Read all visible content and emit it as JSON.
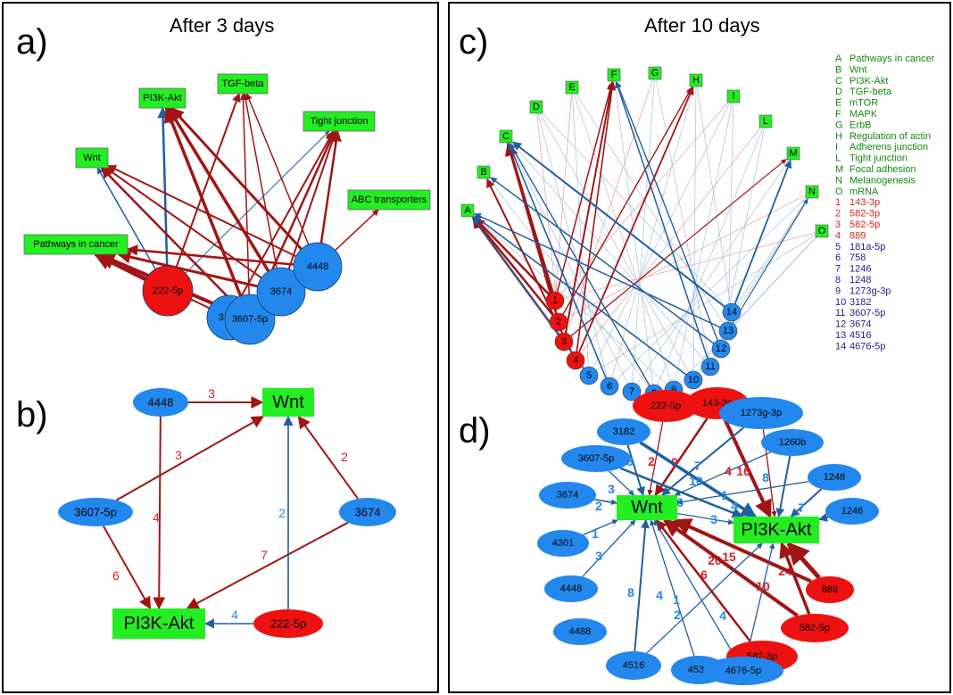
{
  "panel_a": {
    "letter": "a)",
    "title": "After 3 days",
    "pathways": [
      {
        "id": "cancer",
        "label": "Pathways in cancer"
      },
      {
        "id": "wnt",
        "label": "Wnt"
      },
      {
        "id": "pi3k",
        "label": "PI3K-Akt"
      },
      {
        "id": "tgf",
        "label": "TGF-beta"
      },
      {
        "id": "tight",
        "label": "Tight junction"
      },
      {
        "id": "abc",
        "label": "ABC transporters"
      }
    ],
    "mirnas": [
      {
        "id": "m222",
        "label": "222-5p",
        "type": "red"
      },
      {
        "id": "m3195",
        "label": "3195",
        "type": "blue"
      },
      {
        "id": "m3607",
        "label": "3607-5p",
        "type": "blue"
      },
      {
        "id": "m3674",
        "label": "3674",
        "type": "blue"
      },
      {
        "id": "m4448",
        "label": "4448",
        "type": "blue"
      }
    ]
  },
  "panel_b": {
    "letter": "b)",
    "nodes": [
      {
        "id": "wnt",
        "label": "Wnt",
        "kind": "pathway"
      },
      {
        "id": "pi3k",
        "label": "PI3K-Akt",
        "kind": "pathway"
      },
      {
        "id": "n4448",
        "label": "4448",
        "kind": "blue"
      },
      {
        "id": "n3607",
        "label": "3607-5p",
        "kind": "blue"
      },
      {
        "id": "n3674",
        "label": "3674",
        "kind": "blue"
      },
      {
        "id": "n222",
        "label": "222-5p",
        "kind": "red"
      }
    ],
    "edges": [
      {
        "from": "n4448",
        "to": "wnt",
        "weight": "3",
        "color": "red"
      },
      {
        "from": "n4448",
        "to": "pi3k",
        "weight": "4",
        "color": "red"
      },
      {
        "from": "n3607",
        "to": "wnt",
        "weight": "3",
        "color": "red"
      },
      {
        "from": "n3607",
        "to": "pi3k",
        "weight": "6",
        "color": "red"
      },
      {
        "from": "n3674",
        "to": "wnt",
        "weight": "2",
        "color": "red"
      },
      {
        "from": "n3674",
        "to": "pi3k",
        "weight": "7",
        "color": "red"
      },
      {
        "from": "n222",
        "to": "wnt",
        "weight": "2",
        "color": "blue"
      },
      {
        "from": "n222",
        "to": "pi3k",
        "weight": "4",
        "color": "blue"
      }
    ]
  },
  "panel_c": {
    "letter": "c)",
    "title": "After 10 days",
    "pathway_nodes": [
      "A",
      "B",
      "C",
      "D",
      "E",
      "F",
      "G",
      "H",
      "I",
      "L",
      "M",
      "N",
      "O"
    ],
    "mirna_nodes": [
      "1",
      "2",
      "3",
      "4",
      "5",
      "6",
      "7",
      "8",
      "9",
      "10",
      "11",
      "12",
      "13",
      "14"
    ],
    "legend_pathways": [
      {
        "key": "A",
        "name": "Pathways in cancer"
      },
      {
        "key": "B",
        "name": "Wnt"
      },
      {
        "key": "C",
        "name": "PI3K-Akt"
      },
      {
        "key": "D",
        "name": "TGF-beta"
      },
      {
        "key": "E",
        "name": "mTOR"
      },
      {
        "key": "F",
        "name": "MAPK"
      },
      {
        "key": "G",
        "name": "ErbB"
      },
      {
        "key": "H",
        "name": "Regulation of actin"
      },
      {
        "key": "I",
        "name": "Adherens junction"
      },
      {
        "key": "L",
        "name": "Tight junction"
      },
      {
        "key": "M",
        "name": "Focal adhesion"
      },
      {
        "key": "N",
        "name": "Melanogenesis"
      },
      {
        "key": "O",
        "name": "mRNA"
      }
    ],
    "legend_mirnas": [
      {
        "key": "1",
        "name": "143-3p",
        "type": "red"
      },
      {
        "key": "2",
        "name": "582-3p",
        "type": "red"
      },
      {
        "key": "3",
        "name": "582-5p",
        "type": "red"
      },
      {
        "key": "4",
        "name": "889",
        "type": "red"
      },
      {
        "key": "5",
        "name": "181a-5p",
        "type": "blue"
      },
      {
        "key": "6",
        "name": "758",
        "type": "blue"
      },
      {
        "key": "7",
        "name": "1246",
        "type": "blue"
      },
      {
        "key": "8",
        "name": "1248",
        "type": "blue"
      },
      {
        "key": "9",
        "name": "1273g-3p",
        "type": "blue"
      },
      {
        "key": "10",
        "name": "3182",
        "type": "blue"
      },
      {
        "key": "11",
        "name": "3607-5p",
        "type": "blue"
      },
      {
        "key": "12",
        "name": "3674",
        "type": "blue"
      },
      {
        "key": "13",
        "name": "4516",
        "type": "blue"
      },
      {
        "key": "14",
        "name": "4676-5p",
        "type": "blue"
      }
    ]
  },
  "panel_d": {
    "letter": "d)",
    "hubs": [
      {
        "id": "wnt",
        "label": "Wnt"
      },
      {
        "id": "pi3k",
        "label": "PI3K-Akt"
      }
    ],
    "mirnas": [
      {
        "id": "d222",
        "label": "222-5p",
        "type": "red"
      },
      {
        "id": "d143",
        "label": "143-3p",
        "type": "red"
      },
      {
        "id": "d1273",
        "label": "1273g-3p",
        "type": "blue"
      },
      {
        "id": "d3182",
        "label": "3182",
        "type": "blue"
      },
      {
        "id": "d1260",
        "label": "1260b",
        "type": "blue"
      },
      {
        "id": "d3607",
        "label": "3607-5p",
        "type": "blue"
      },
      {
        "id": "d1248",
        "label": "1248",
        "type": "blue"
      },
      {
        "id": "d3674",
        "label": "3674",
        "type": "blue"
      },
      {
        "id": "d1246",
        "label": "1246",
        "type": "blue"
      },
      {
        "id": "d4301",
        "label": "4301",
        "type": "blue"
      },
      {
        "id": "d4448",
        "label": "4448",
        "type": "blue"
      },
      {
        "id": "d889",
        "label": "889",
        "type": "red"
      },
      {
        "id": "d4488",
        "label": "4488",
        "type": "blue"
      },
      {
        "id": "d5825",
        "label": "582-5p",
        "type": "red"
      },
      {
        "id": "d4516",
        "label": "4516",
        "type": "blue"
      },
      {
        "id": "d5823",
        "label": "582-3p",
        "type": "red"
      },
      {
        "id": "d4532",
        "label": "4532",
        "type": "blue"
      },
      {
        "id": "d4676",
        "label": "4676-5p",
        "type": "blue"
      }
    ],
    "edges": [
      {
        "from": "d222",
        "to": "wnt",
        "weight": "2",
        "color": "red"
      },
      {
        "from": "d143",
        "to": "wnt",
        "weight": "9",
        "color": "red"
      },
      {
        "from": "d143",
        "to": "pi3k",
        "weight": "16",
        "color": "red"
      },
      {
        "from": "d1273",
        "to": "wnt",
        "weight": "7",
        "color": "blue"
      },
      {
        "from": "d1273",
        "to": "pi3k",
        "weight": "4",
        "color": "red"
      },
      {
        "from": "d3182",
        "to": "wnt",
        "weight": "8",
        "color": "blue"
      },
      {
        "from": "d3182",
        "to": "pi3k",
        "weight": "10",
        "color": "blue"
      },
      {
        "from": "d1260",
        "to": "wnt",
        "weight": "1",
        "color": "blue"
      },
      {
        "from": "d1260",
        "to": "pi3k",
        "weight": "8",
        "color": "blue"
      },
      {
        "from": "d3607",
        "to": "wnt",
        "weight": "3",
        "color": "blue"
      },
      {
        "from": "d3607",
        "to": "pi3k",
        "weight": "6",
        "color": "blue"
      },
      {
        "from": "d1248",
        "to": "wnt",
        "weight": "4",
        "color": "blue"
      },
      {
        "from": "d1248",
        "to": "pi3k",
        "weight": "7",
        "color": "blue"
      },
      {
        "from": "d3674",
        "to": "wnt",
        "weight": "2",
        "color": "blue"
      },
      {
        "from": "d3674",
        "to": "pi3k",
        "weight": "3",
        "color": "blue"
      },
      {
        "from": "d1246",
        "to": "pi3k",
        "weight": "7",
        "color": "blue"
      },
      {
        "from": "d4301",
        "to": "wnt",
        "weight": "1",
        "color": "blue"
      },
      {
        "from": "d4448",
        "to": "wnt",
        "weight": "3",
        "color": "blue"
      },
      {
        "from": "d889",
        "to": "pi3k",
        "weight": "24",
        "color": "red"
      },
      {
        "from": "d889",
        "to": "wnt",
        "weight": "20",
        "color": "red"
      },
      {
        "from": "d5825",
        "to": "wnt",
        "weight": "15",
        "color": "red"
      },
      {
        "from": "d5825",
        "to": "pi3k",
        "weight": "10",
        "color": "red"
      },
      {
        "from": "d4516",
        "to": "wnt",
        "weight": "8",
        "color": "blue"
      },
      {
        "from": "d4516",
        "to": "pi3k",
        "weight": "2",
        "color": "blue"
      },
      {
        "from": "d5823",
        "to": "wnt",
        "weight": "6",
        "color": "red"
      },
      {
        "from": "d4532",
        "to": "wnt",
        "weight": "4",
        "color": "blue"
      },
      {
        "from": "d4676",
        "to": "wnt",
        "weight": "1",
        "color": "blue"
      },
      {
        "from": "d4676",
        "to": "pi3k",
        "weight": "4",
        "color": "blue"
      }
    ]
  },
  "colors": {
    "pathway_fill": "#22ee22",
    "blue_node": "#2288ee",
    "red_node": "#ee1111",
    "edge_red": "#a01515",
    "edge_blue": "#1f5f9f",
    "legend_green": "#118811",
    "legend_red": "#dd2222",
    "legend_blue": "#222288"
  }
}
